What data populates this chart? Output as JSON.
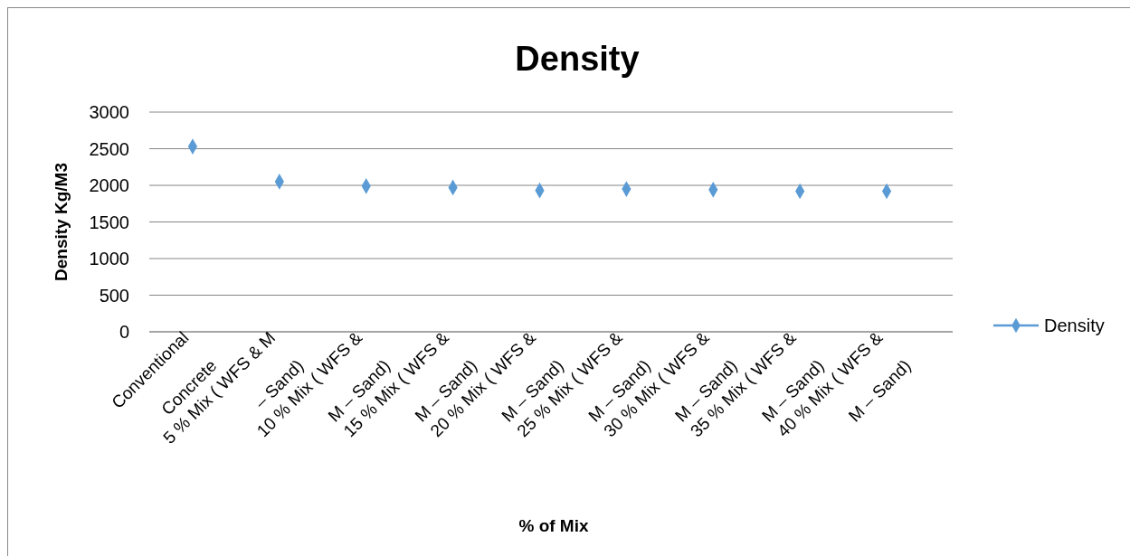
{
  "chart_data": {
    "type": "scatter",
    "title": "Density",
    "xlabel": "% of Mix",
    "ylabel": "Density Kg/M3",
    "categories": [
      "Conventional Concrete",
      "5 % Mix ( WFS & M – Sand)",
      "10 % Mix ( WFS & M – Sand)",
      "15 % Mix ( WFS & M – Sand)",
      "20 % Mix ( WFS & M – Sand)",
      "25 % Mix ( WFS & M – Sand)",
      "30 % Mix ( WFS & M – Sand)",
      "35 % Mix ( WFS & M – Sand)",
      "40 % Mix ( WFS & M – Sand)"
    ],
    "series": [
      {
        "name": "Density",
        "color": "#5b9bd5",
        "values": [
          2530,
          2050,
          1990,
          1970,
          1930,
          1950,
          1940,
          1920,
          1920
        ]
      }
    ],
    "ylim": [
      0,
      3000
    ],
    "yticks": [
      0,
      500,
      1000,
      1500,
      2000,
      2500,
      3000
    ],
    "grid": "y",
    "legend": "right",
    "marker": "diamond"
  }
}
